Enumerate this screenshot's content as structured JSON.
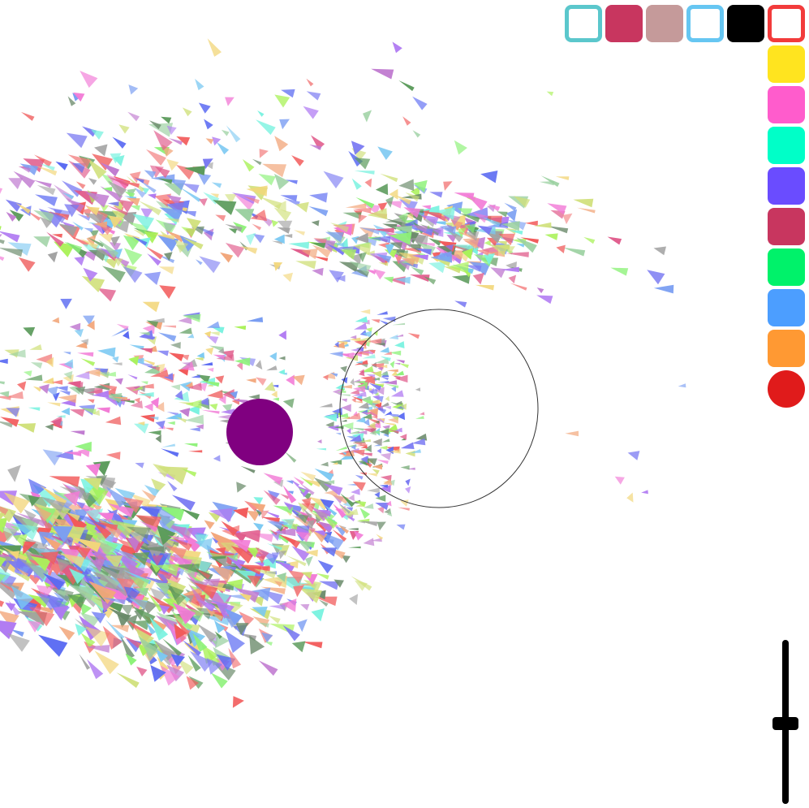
{
  "canvas": {
    "background": "#ffffff"
  },
  "toolbar": {
    "top_row": [
      {
        "name": "outline-teal",
        "color": "#5bc7cc",
        "style": "outline"
      },
      {
        "name": "crimson",
        "color": "#c8365f",
        "style": "fill"
      },
      {
        "name": "dusty-rose",
        "color": "#c59a9a",
        "style": "fill"
      },
      {
        "name": "outline-sky-blue",
        "color": "#66c6f2",
        "style": "outline"
      },
      {
        "name": "black",
        "color": "#000000",
        "style": "fill"
      },
      {
        "name": "outline-red",
        "color": "#f23b3b",
        "style": "outline"
      }
    ],
    "right_column": [
      {
        "name": "yellow",
        "color": "#ffe41f",
        "style": "fill"
      },
      {
        "name": "pink",
        "color": "#ff5ccc",
        "style": "fill"
      },
      {
        "name": "aquamarine",
        "color": "#00ffc8",
        "style": "fill"
      },
      {
        "name": "violet",
        "color": "#6a4cff",
        "style": "fill"
      },
      {
        "name": "raspberry",
        "color": "#c8365f",
        "style": "fill"
      },
      {
        "name": "green",
        "color": "#00f26a",
        "style": "fill"
      },
      {
        "name": "blue",
        "color": "#4c9eff",
        "style": "fill"
      },
      {
        "name": "orange",
        "color": "#ff9933",
        "style": "fill"
      },
      {
        "name": "red-circle",
        "color": "#e01b1b",
        "style": "circle"
      }
    ]
  },
  "size_slider": {
    "value": 0.49
  },
  "attractor": {
    "color": "#800080"
  },
  "cursor_ring": {
    "color": "#333333"
  },
  "shard_palette": [
    "#f27a7a",
    "#7a9ef2",
    "#8ef27a",
    "#f27ad6",
    "#7af2e0",
    "#b07af2",
    "#f2d67a",
    "#7a7af2",
    "#f2a67a",
    "#9ad0a0",
    "#c07ad0",
    "#7ac8f2",
    "#e05a8a",
    "#5a9a5a",
    "#d0e07a",
    "#a0a0a0",
    "#6a8a6a",
    "#f25a5a",
    "#5a6af2",
    "#aaf25a"
  ]
}
